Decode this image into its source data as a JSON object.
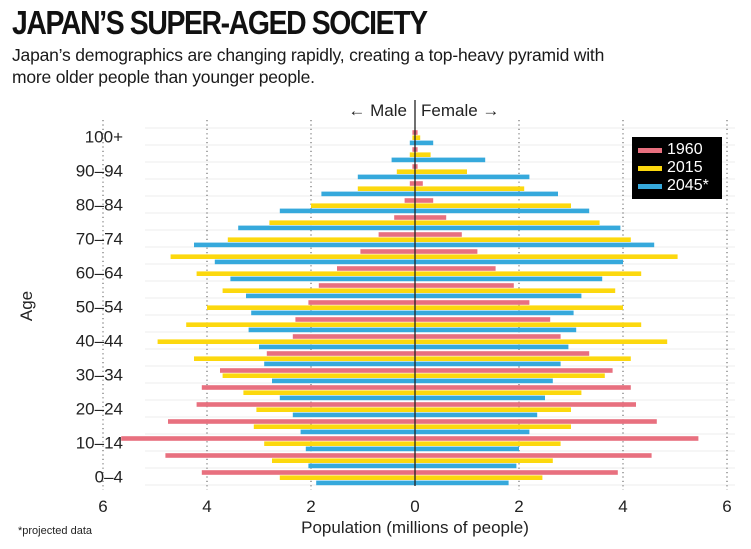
{
  "header": {
    "title": "JAPAN’S SUPER-AGED SOCIETY",
    "subtitle": "Japan’s demographics are changing rapidly, creating a top-heavy pyramid with more older people than younger people."
  },
  "footnote": "*projected data",
  "chart_data": {
    "type": "bar",
    "orientation": "horizontal-population-pyramid",
    "title": "JAPAN’S SUPER-AGED SOCIETY",
    "xlabel": "Population  (millions of people)",
    "ylabel": "Age",
    "side_labels": {
      "left": "Male",
      "right": "Female",
      "left_arrow": "←",
      "right_arrow": "→"
    },
    "xlim": [
      -6,
      6
    ],
    "xticks": [
      6,
      4,
      2,
      0,
      2,
      4,
      6
    ],
    "grid": true,
    "legend_position": "top-right",
    "categories": [
      "0–4",
      "5–9",
      "10–14",
      "15–19",
      "20–24",
      "25–29",
      "30–34",
      "35–39",
      "40–44",
      "45–49",
      "50–54",
      "55–59",
      "60–64",
      "65–69",
      "70–74",
      "75–79",
      "80–84",
      "85–89",
      "90–94",
      "95–99",
      "100+"
    ],
    "ytick_labels": [
      "0–4",
      "10–14",
      "20–24",
      "30–34",
      "40–44",
      "50–54",
      "60–64",
      "70–74",
      "80–84",
      "90–94",
      "100+"
    ],
    "series": [
      {
        "name": "1960",
        "color": "#e8707f",
        "male": [
          4.1,
          4.8,
          5.65,
          4.75,
          4.2,
          4.1,
          3.75,
          2.85,
          2.35,
          2.3,
          2.05,
          1.85,
          1.5,
          1.05,
          0.7,
          0.4,
          0.2,
          0.1,
          0.05,
          0.05,
          0.05
        ],
        "female": [
          3.9,
          4.55,
          5.45,
          4.65,
          4.25,
          4.15,
          3.8,
          3.35,
          2.8,
          2.6,
          2.2,
          1.9,
          1.55,
          1.2,
          0.9,
          0.6,
          0.35,
          0.15,
          0.05,
          0.05,
          0.05
        ]
      },
      {
        "name": "2015",
        "color": "#fcd80e",
        "male": [
          2.6,
          2.75,
          2.9,
          3.1,
          3.05,
          3.3,
          3.7,
          4.25,
          4.95,
          4.4,
          4.0,
          3.7,
          4.2,
          4.7,
          3.6,
          2.8,
          2.0,
          1.1,
          0.35,
          0.1,
          0.05
        ],
        "female": [
          2.45,
          2.65,
          2.8,
          3.0,
          3.0,
          3.2,
          3.65,
          4.15,
          4.85,
          4.35,
          4.0,
          3.85,
          4.35,
          5.05,
          4.15,
          3.55,
          3.0,
          2.1,
          1.0,
          0.3,
          0.1
        ]
      },
      {
        "name": "2045*",
        "color": "#36a9dc",
        "male": [
          1.9,
          2.05,
          2.1,
          2.2,
          2.35,
          2.6,
          2.75,
          2.9,
          3.0,
          3.2,
          3.15,
          3.25,
          3.55,
          3.85,
          4.25,
          3.4,
          2.6,
          1.8,
          1.1,
          0.45,
          0.1
        ],
        "female": [
          1.8,
          1.95,
          2.0,
          2.2,
          2.35,
          2.5,
          2.65,
          2.8,
          2.95,
          3.1,
          3.05,
          3.2,
          3.6,
          4.0,
          4.6,
          3.95,
          3.35,
          2.75,
          2.2,
          1.35,
          0.35
        ]
      }
    ]
  }
}
